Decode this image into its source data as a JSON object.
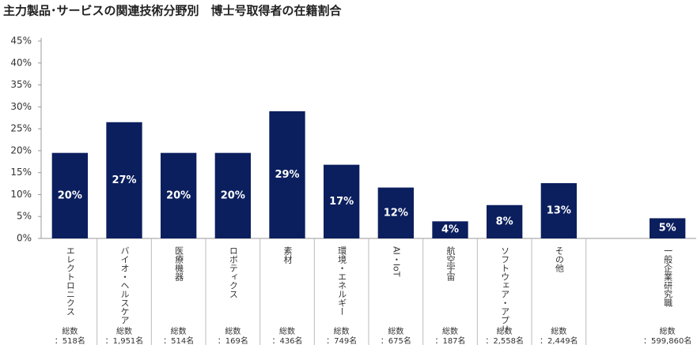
{
  "chart_data": {
    "type": "bar",
    "title": "主力製品･サービスの関連技術分野別　博士号取得者の在籍割合",
    "categories": [
      "エレクトロニクス",
      "バイオ・ヘルスケア",
      "医療機器",
      "ロボティクス",
      "素材",
      "環境・エネルギー",
      "AI・IoT",
      "航空宇宙",
      "ソフトウェア・アプリ",
      "その他",
      null,
      "一般企業研究職"
    ],
    "values": [
      19.5,
      26.5,
      19.5,
      19.5,
      29.0,
      16.8,
      11.6,
      3.9,
      7.6,
      12.6,
      null,
      4.6
    ],
    "value_labels": [
      "20%",
      "27%",
      "20%",
      "20%",
      "29%",
      "17%",
      "12%",
      "4%",
      "8%",
      "13%",
      null,
      "5%"
    ],
    "totals_heading": "総数",
    "totals": [
      "：518名",
      "：1,951名",
      "：514名",
      "：169名",
      "：436名",
      "：749名",
      "：675名",
      "：187名",
      "：2,558名",
      "：2,449名",
      null,
      "：599,860名"
    ],
    "color": "#0b1f5e",
    "ylim": [
      0,
      45
    ],
    "yticks": [
      {
        "value": 0,
        "label": "0%"
      },
      {
        "value": 5,
        "label": "5%"
      },
      {
        "value": 10,
        "label": "10%"
      },
      {
        "value": 15,
        "label": "15%"
      },
      {
        "value": 20,
        "label": "20%"
      },
      {
        "value": 25,
        "label": "25%"
      },
      {
        "value": 30,
        "label": "30%"
      },
      {
        "value": 35,
        "label": "35%"
      },
      {
        "value": 40,
        "label": "40%"
      },
      {
        "value": 45,
        "label": "45%"
      }
    ],
    "grid": false
  }
}
